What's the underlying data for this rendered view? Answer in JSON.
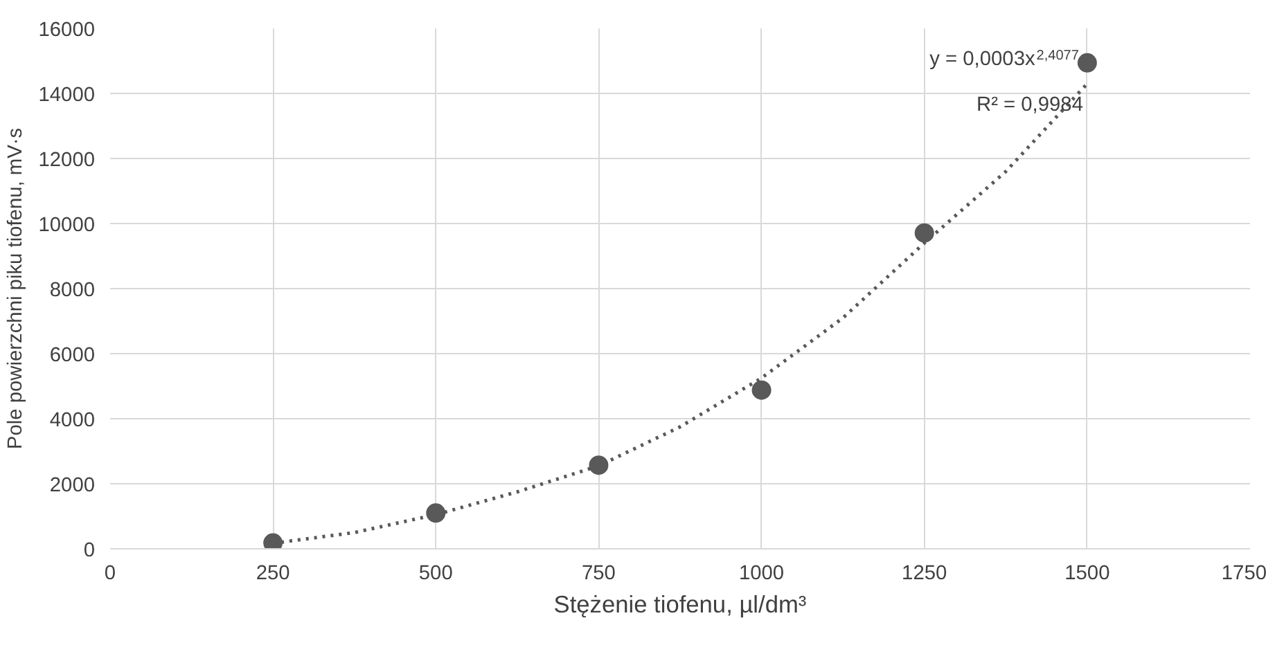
{
  "chart_data": {
    "type": "scatter",
    "xlabel": "Stężenie tiofenu, µl/dm³",
    "ylabel": "Pole powierzchni piku tiofenu, mV·s",
    "x": [
      250,
      500,
      750,
      1000,
      1250,
      1500
    ],
    "series": [
      {
        "color": "#595959",
        "values": [
          180,
          1100,
          2570,
          4880,
          9710,
          14940
        ],
        "marker": "circle"
      },
      {
        "type": "line",
        "color": "#595959",
        "line_style": "dotted",
        "x": [
          250,
          375,
          500,
          625,
          750,
          875,
          1000,
          1125,
          1250,
          1375,
          1500
        ],
        "values": [
          170,
          500,
          1050,
          1750,
          2550,
          3750,
          5250,
          7100,
          9400,
          11600,
          14300
        ]
      }
    ],
    "annotations": [
      "y = 0,0003x$^{2,4077}$",
      "R² = 0,9984"
    ],
    "xlim": [
      0,
      1750
    ],
    "xticks": [
      0,
      250,
      500,
      750,
      1000,
      1250,
      1500,
      1750
    ],
    "ylim": [
      0,
      16000
    ],
    "yticks": [
      0,
      2000,
      4000,
      6000,
      8000,
      10000,
      12000,
      14000,
      16000
    ],
    "grid": true
  }
}
